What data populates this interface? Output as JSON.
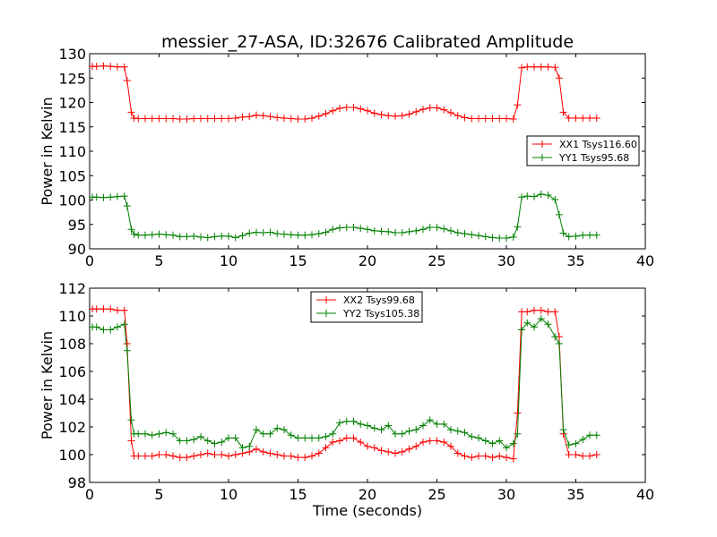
{
  "title": "messier_27-ASA, ID:32676 Calibrated Amplitude",
  "chart_data": [
    {
      "type": "line",
      "xlabel": "",
      "ylabel": "Power in Kelvin",
      "xlim": [
        0,
        40
      ],
      "ylim": [
        90,
        130
      ],
      "xticks": [
        0,
        5,
        10,
        15,
        20,
        25,
        30,
        35,
        40
      ],
      "yticks": [
        90,
        95,
        100,
        105,
        110,
        115,
        120,
        125,
        130
      ],
      "grid": false,
      "legend_placement": "center-right",
      "series": [
        {
          "name": "XX1 Tsys116.60",
          "color": "#ff0000",
          "x": [
            0.2,
            0.5,
            1,
            1.5,
            2,
            2.5,
            2.7,
            3,
            3.2,
            3.5,
            4,
            4.5,
            5,
            5.5,
            6,
            6.5,
            7,
            7.5,
            8,
            8.5,
            9,
            9.5,
            10,
            10.5,
            11,
            11.5,
            12,
            12.5,
            13,
            13.5,
            14,
            14.5,
            15,
            15.5,
            16,
            16.5,
            17,
            17.5,
            18,
            18.5,
            19,
            19.5,
            20,
            20.5,
            21,
            21.5,
            22,
            22.5,
            23,
            23.5,
            24,
            24.5,
            25,
            25.5,
            26,
            26.5,
            27,
            27.5,
            28,
            28.5,
            29,
            29.5,
            30,
            30.5,
            30.8,
            31.1,
            31.5,
            32,
            32.5,
            33,
            33.5,
            33.8,
            34.1,
            34.5,
            35,
            35.5,
            36,
            36.5
          ],
          "values": [
            127.4,
            127.4,
            127.5,
            127.4,
            127.3,
            127.3,
            124.5,
            118.0,
            116.8,
            116.7,
            116.7,
            116.7,
            116.7,
            116.7,
            116.7,
            116.6,
            116.6,
            116.7,
            116.7,
            116.7,
            116.7,
            116.7,
            116.7,
            116.8,
            117.0,
            117.1,
            117.4,
            117.3,
            117.1,
            116.9,
            116.8,
            116.7,
            116.6,
            116.6,
            116.8,
            117.2,
            117.7,
            118.3,
            118.8,
            119.0,
            119.0,
            118.7,
            118.3,
            117.8,
            117.5,
            117.3,
            117.2,
            117.3,
            117.6,
            118.1,
            118.6,
            118.9,
            118.9,
            118.5,
            117.9,
            117.3,
            116.9,
            116.7,
            116.7,
            116.7,
            116.7,
            116.7,
            116.7,
            116.6,
            119.5,
            127.1,
            127.3,
            127.3,
            127.3,
            127.3,
            127.2,
            125.0,
            118.0,
            116.8,
            116.8,
            116.8,
            116.8,
            116.8
          ]
        },
        {
          "name": "YY1 Tsys95.68",
          "color": "#008000",
          "x": [
            0.2,
            0.5,
            1,
            1.5,
            2,
            2.5,
            2.7,
            3,
            3.2,
            3.5,
            4,
            4.5,
            5,
            5.5,
            6,
            6.5,
            7,
            7.5,
            8,
            8.5,
            9,
            9.5,
            10,
            10.5,
            11,
            11.5,
            12,
            12.5,
            13,
            13.5,
            14,
            14.5,
            15,
            15.5,
            16,
            16.5,
            17,
            17.5,
            18,
            18.5,
            19,
            19.5,
            20,
            20.5,
            21,
            21.5,
            22,
            22.5,
            23,
            23.5,
            24,
            24.5,
            25,
            25.5,
            26,
            26.5,
            27,
            27.5,
            28,
            28.5,
            29,
            29.5,
            30,
            30.5,
            30.8,
            31.1,
            31.5,
            32,
            32.5,
            33,
            33.5,
            33.8,
            34.1,
            34.5,
            35,
            35.5,
            36,
            36.5
          ],
          "values": [
            100.6,
            100.6,
            100.5,
            100.6,
            100.7,
            100.8,
            98.8,
            94.0,
            93.0,
            92.8,
            92.8,
            92.9,
            93.0,
            92.9,
            92.8,
            92.5,
            92.5,
            92.6,
            92.4,
            92.3,
            92.5,
            92.6,
            92.6,
            92.3,
            92.7,
            93.2,
            93.4,
            93.3,
            93.4,
            93.1,
            93.0,
            92.9,
            92.8,
            92.8,
            92.9,
            93.1,
            93.4,
            94.0,
            94.3,
            94.4,
            94.4,
            94.2,
            94.0,
            93.7,
            93.6,
            93.5,
            93.3,
            93.3,
            93.5,
            93.7,
            94.0,
            94.4,
            94.4,
            94.1,
            93.7,
            93.3,
            93.1,
            92.9,
            92.7,
            92.5,
            92.3,
            92.2,
            92.2,
            92.4,
            94.5,
            100.6,
            100.8,
            100.7,
            101.2,
            101.0,
            100.1,
            97.0,
            93.2,
            92.5,
            92.6,
            92.8,
            92.8,
            92.8
          ]
        }
      ]
    },
    {
      "type": "line",
      "xlabel": "Time (seconds)",
      "ylabel": "Power in Kelvin",
      "xlim": [
        0,
        40
      ],
      "ylim": [
        98,
        112
      ],
      "xticks": [
        0,
        5,
        10,
        15,
        20,
        25,
        30,
        35,
        40
      ],
      "yticks": [
        98,
        100,
        102,
        104,
        106,
        108,
        110,
        112
      ],
      "grid": false,
      "legend_placement": "upper-center",
      "series": [
        {
          "name": "XX2 Tsys99.68",
          "color": "#ff0000",
          "x": [
            0.2,
            0.5,
            1,
            1.5,
            2,
            2.5,
            2.7,
            3,
            3.2,
            3.5,
            4,
            4.5,
            5,
            5.5,
            6,
            6.5,
            7,
            7.5,
            8,
            8.5,
            9,
            9.5,
            10,
            10.5,
            11,
            11.5,
            12,
            12.5,
            13,
            13.5,
            14,
            14.5,
            15,
            15.5,
            16,
            16.5,
            17,
            17.5,
            18,
            18.5,
            19,
            19.5,
            20,
            20.5,
            21,
            21.5,
            22,
            22.5,
            23,
            23.5,
            24,
            24.5,
            25,
            25.5,
            26,
            26.5,
            27,
            27.5,
            28,
            28.5,
            29,
            29.5,
            30,
            30.5,
            30.8,
            31.1,
            31.5,
            32,
            32.5,
            33,
            33.5,
            33.8,
            34.1,
            34.5,
            35,
            35.5,
            36,
            36.5
          ],
          "values": [
            110.5,
            110.5,
            110.5,
            110.5,
            110.4,
            110.4,
            108.0,
            101.0,
            99.9,
            99.9,
            99.9,
            99.9,
            100.0,
            100.0,
            99.9,
            99.8,
            99.8,
            99.9,
            100.0,
            100.1,
            100.0,
            100.0,
            99.9,
            100.0,
            100.1,
            100.2,
            100.4,
            100.2,
            100.1,
            100.0,
            99.9,
            99.9,
            99.8,
            99.8,
            99.9,
            100.1,
            100.5,
            100.9,
            101.0,
            101.2,
            101.2,
            100.9,
            100.6,
            100.5,
            100.3,
            100.2,
            100.1,
            100.2,
            100.4,
            100.6,
            100.9,
            101.0,
            101.0,
            100.9,
            100.6,
            100.1,
            99.9,
            99.8,
            99.9,
            99.9,
            99.8,
            99.9,
            99.8,
            99.7,
            103.0,
            110.3,
            110.3,
            110.4,
            110.4,
            110.3,
            110.3,
            108.5,
            101.5,
            100.0,
            100.0,
            99.9,
            99.9,
            100.0
          ]
        },
        {
          "name": "YY2 Tsys105.38",
          "color": "#008000",
          "x": [
            0.2,
            0.5,
            1,
            1.5,
            2,
            2.5,
            2.7,
            3,
            3.2,
            3.5,
            4,
            4.5,
            5,
            5.5,
            6,
            6.5,
            7,
            7.5,
            8,
            8.5,
            9,
            9.5,
            10,
            10.5,
            11,
            11.5,
            12,
            12.5,
            13,
            13.5,
            14,
            14.5,
            15,
            15.5,
            16,
            16.5,
            17,
            17.5,
            18,
            18.5,
            19,
            19.5,
            20,
            20.5,
            21,
            21.5,
            22,
            22.5,
            23,
            23.5,
            24,
            24.5,
            25,
            25.5,
            26,
            26.5,
            27,
            27.5,
            28,
            28.5,
            29,
            29.5,
            30,
            30.5,
            30.8,
            31.1,
            31.5,
            32,
            32.5,
            33,
            33.5,
            33.8,
            34.1,
            34.5,
            35,
            35.5,
            36,
            36.5
          ],
          "values": [
            109.2,
            109.2,
            109.0,
            109.0,
            109.2,
            109.4,
            107.5,
            102.5,
            101.5,
            101.5,
            101.5,
            101.4,
            101.5,
            101.6,
            101.5,
            101.0,
            101.0,
            101.1,
            101.3,
            101.0,
            100.8,
            100.9,
            101.2,
            101.2,
            100.5,
            100.6,
            101.8,
            101.5,
            101.5,
            101.9,
            101.8,
            101.4,
            101.2,
            101.2,
            101.2,
            101.2,
            101.3,
            101.5,
            102.3,
            102.4,
            102.4,
            102.2,
            102.1,
            101.9,
            101.8,
            102.1,
            101.5,
            101.5,
            101.7,
            101.8,
            102.1,
            102.5,
            102.2,
            102.2,
            101.8,
            101.7,
            101.6,
            101.3,
            101.2,
            101.0,
            100.8,
            101.0,
            100.5,
            100.8,
            101.5,
            109.0,
            109.5,
            109.2,
            109.8,
            109.4,
            108.5,
            108.0,
            101.8,
            100.7,
            100.8,
            101.1,
            101.4,
            101.4
          ]
        }
      ]
    }
  ]
}
